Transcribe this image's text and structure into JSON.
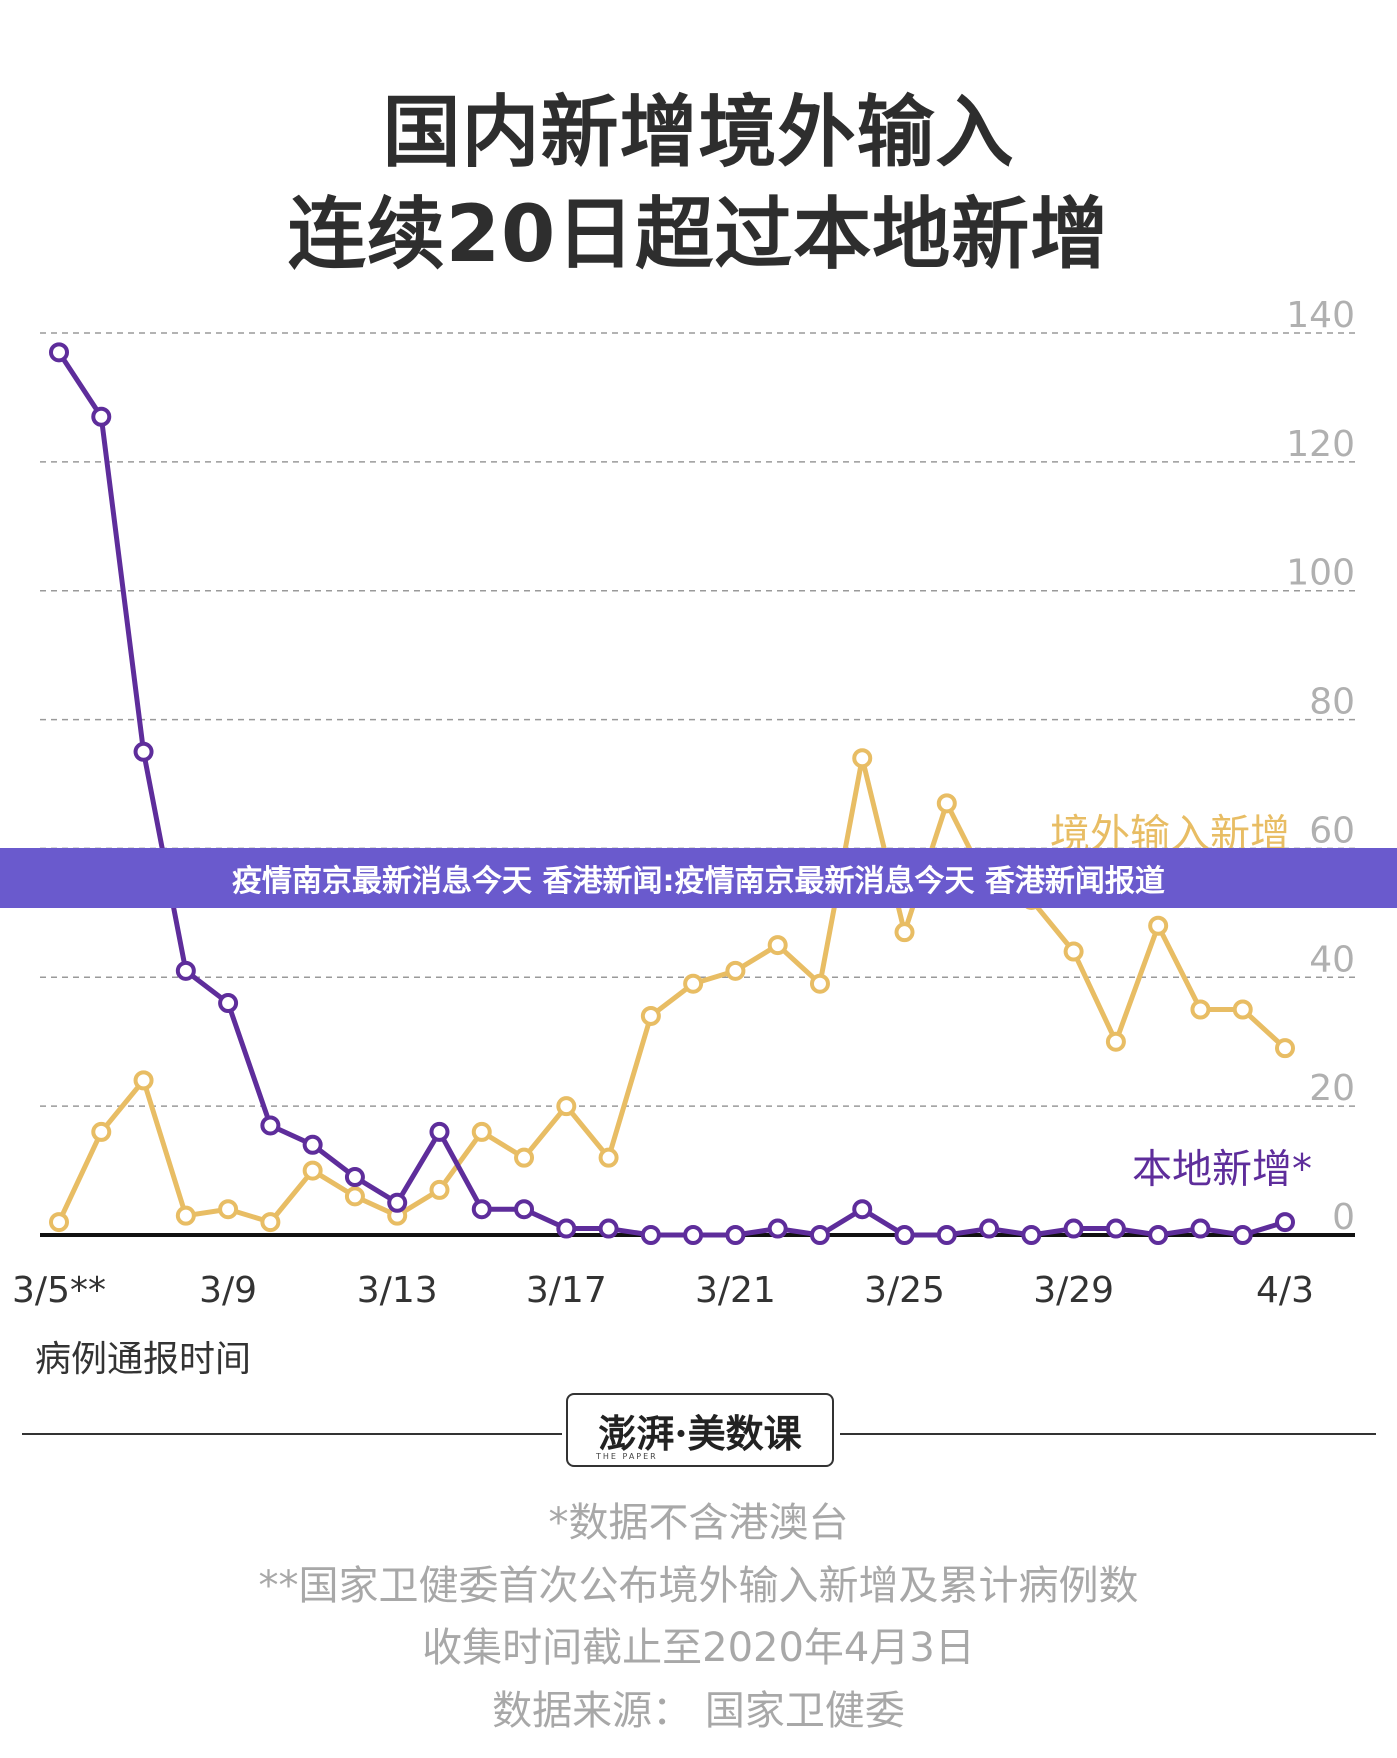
{
  "header": {
    "title_line1": "国内新增境外输入",
    "title_line2": "连续20日超过本地新增"
  },
  "banner": {
    "text": "疫情南京最新消息今天 香港新闻:疫情南京最新消息今天 香港新闻报道"
  },
  "chart_data": {
    "type": "line",
    "x": [
      "3/5",
      "3/6",
      "3/7",
      "3/8",
      "3/9",
      "3/10",
      "3/11",
      "3/12",
      "3/13",
      "3/14",
      "3/15",
      "3/16",
      "3/17",
      "3/18",
      "3/19",
      "3/20",
      "3/21",
      "3/22",
      "3/23",
      "3/24",
      "3/25",
      "3/26",
      "3/27",
      "3/28",
      "3/29",
      "3/30",
      "3/31",
      "4/1",
      "4/2",
      "4/3"
    ],
    "x_tick_labels": [
      {
        "index": 0,
        "label": "3/5**"
      },
      {
        "index": 4,
        "label": "3/9"
      },
      {
        "index": 8,
        "label": "3/13"
      },
      {
        "index": 12,
        "label": "3/17"
      },
      {
        "index": 16,
        "label": "3/21"
      },
      {
        "index": 20,
        "label": "3/25"
      },
      {
        "index": 24,
        "label": "3/29"
      },
      {
        "index": 29,
        "label": "4/3"
      }
    ],
    "y_ticks": [
      "0",
      "20",
      "40",
      "60",
      "80",
      "100",
      "120",
      "140"
    ],
    "ylim": [
      0,
      140
    ],
    "grid": true,
    "xlabel": "病例通报时间",
    "series": [
      {
        "name": "境外输入新增",
        "color": "#e8bd64",
        "values": [
          2,
          16,
          24,
          3,
          4,
          2,
          10,
          6,
          3,
          7,
          16,
          12,
          20,
          12,
          34,
          39,
          41,
          45,
          39,
          74,
          47,
          67,
          54,
          52,
          44,
          30,
          48,
          35,
          35,
          29
        ]
      },
      {
        "name": "本地新增*",
        "color": "#5e2d9b",
        "values": [
          137,
          127,
          75,
          41,
          36,
          17,
          14,
          9,
          5,
          16,
          4,
          4,
          1,
          1,
          0,
          0,
          0,
          1,
          0,
          4,
          0,
          0,
          1,
          0,
          1,
          1,
          0,
          1,
          0,
          2
        ]
      }
    ]
  },
  "footer": {
    "logo_text": "澎湃·美数课",
    "logo_sub": "THE PAPER",
    "note1": "*数据不含港澳台",
    "note2": "**国家卫健委首次公布境外输入新增及累计病例数",
    "note3": "收集时间截止至2020年4月3日",
    "note4": "数据来源：  国家卫健委"
  }
}
